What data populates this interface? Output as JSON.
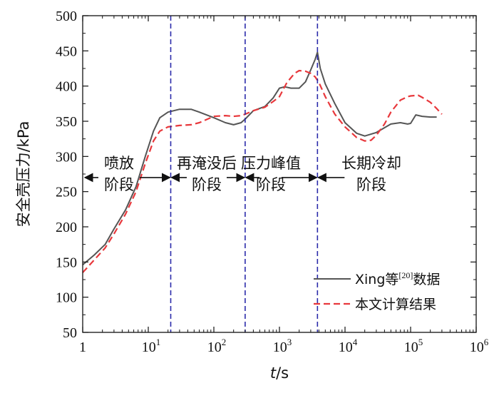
{
  "chart_data": {
    "type": "line",
    "xscale": "log",
    "xlim": [
      1,
      1000000
    ],
    "ylim": [
      50,
      500
    ],
    "xticks": [
      {
        "value": 1,
        "base": "1",
        "exp": ""
      },
      {
        "value": 10,
        "base": "10",
        "exp": "1"
      },
      {
        "value": 100,
        "base": "10",
        "exp": "2"
      },
      {
        "value": 1000,
        "base": "10",
        "exp": "3"
      },
      {
        "value": 10000,
        "base": "10",
        "exp": "4"
      },
      {
        "value": 100000,
        "base": "10",
        "exp": "5"
      },
      {
        "value": 1000000,
        "base": "10",
        "exp": "6"
      }
    ],
    "yticks": [
      50,
      100,
      150,
      200,
      250,
      300,
      350,
      400,
      450,
      500
    ],
    "xlabel_italic": "t",
    "xlabel_rest": "/s",
    "ylabel": "安全壳压力/kPa",
    "grid": false,
    "legend_position": "bottom-right",
    "series": [
      {
        "name": "Xing等",
        "name_sup": "[20]",
        "name_suffix": "数据",
        "color": "#555555",
        "dash": "solid",
        "x": [
          1,
          1.5,
          2.2,
          3,
          4.5,
          6.5,
          9,
          12,
          15,
          20,
          30,
          45,
          60,
          100,
          150,
          200,
          260,
          300,
          400,
          600,
          800,
          1000,
          1200,
          1500,
          2000,
          2500,
          3000,
          3500,
          3800,
          4200,
          5000,
          7000,
          10000,
          15000,
          20000,
          30000,
          50000,
          70000,
          90000,
          100000,
          120000,
          150000,
          200000,
          250000
        ],
        "y": [
          146,
          160,
          175,
          197,
          224,
          257,
          300,
          336,
          355,
          363,
          367,
          367,
          363,
          355,
          348,
          345,
          348,
          353,
          365,
          371,
          383,
          397,
          399,
          397,
          397,
          406,
          423,
          438,
          448,
          425,
          403,
          375,
          348,
          333,
          329,
          334,
          346,
          348,
          346,
          347,
          359,
          357,
          356,
          356
        ]
      },
      {
        "name": "本文计算结果",
        "color": "#e8383c",
        "dash": "dashed",
        "x": [
          1,
          1.5,
          2.2,
          3,
          4.5,
          6.5,
          9,
          12,
          15,
          20,
          30,
          45,
          60,
          100,
          150,
          200,
          260,
          300,
          400,
          600,
          800,
          1000,
          1300,
          1700,
          2000,
          2500,
          3000,
          3500,
          4000,
          5000,
          7000,
          10000,
          15000,
          20000,
          25000,
          30000,
          40000,
          50000,
          70000,
          90000,
          100000,
          130000,
          150000,
          200000,
          250000,
          300000
        ],
        "y": [
          135,
          153,
          170,
          190,
          218,
          250,
          290,
          322,
          336,
          342,
          344,
          345,
          348,
          357,
          358,
          357,
          358,
          360,
          365,
          370,
          378,
          385,
          405,
          418,
          422,
          421,
          418,
          413,
          405,
          385,
          360,
          342,
          327,
          322,
          323,
          330,
          346,
          363,
          380,
          385,
          386,
          387,
          384,
          377,
          368,
          360
        ]
      }
    ],
    "dividers": [
      22,
      300,
      3800
    ],
    "stages": [
      {
        "lines": [
          "喷放",
          "阶段"
        ]
      },
      {
        "lines": [
          "再淹没后",
          "阶段"
        ]
      },
      {
        "lines": [
          "压力峰值",
          "阶段"
        ]
      },
      {
        "lines": [
          "长期冷却",
          "阶段"
        ]
      }
    ],
    "arrow_y": 270
  }
}
